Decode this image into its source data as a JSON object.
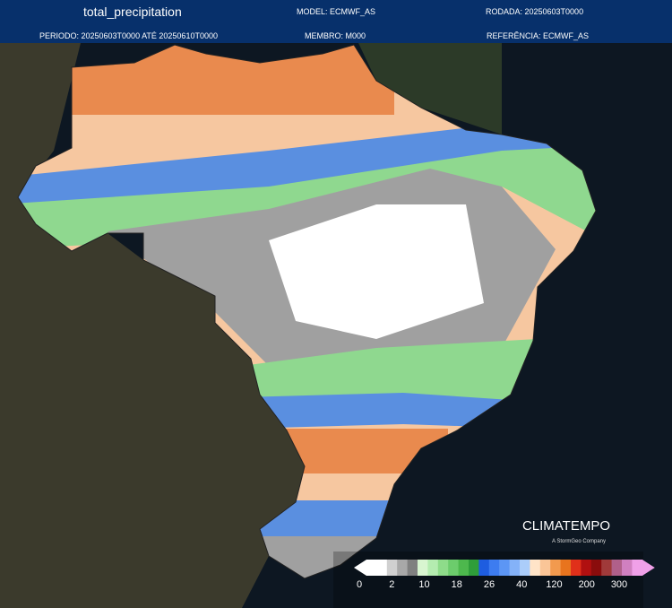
{
  "header": {
    "title": "total_precipitation",
    "model": "MODEL: ECMWF_AS",
    "run": "RODADA: 20250603T0000",
    "period": "PERIODO: 20250603T0000 ATÉ 20250610T0000",
    "member": "MEMBRO: M000",
    "reference": "REFERÊNCIA: ECMWF_AS"
  },
  "logo": {
    "name": "CLIMATEMPO",
    "tagline": "A StormGeo Company"
  },
  "legend": {
    "labels": [
      "0",
      "2",
      "10",
      "18",
      "26",
      "40",
      "120",
      "200",
      "300"
    ]
  }
}
